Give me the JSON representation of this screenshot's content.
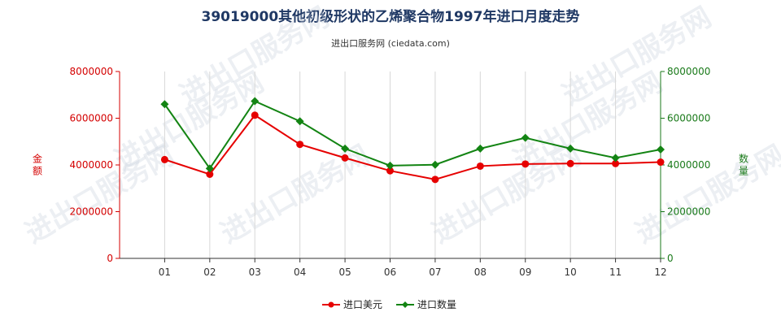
{
  "title": "39019000其他初级形状的乙烯聚合物1997年进口月度走势",
  "subtitle": "进出口服务网 (ciedata.com)",
  "watermark": "进出口服务网",
  "chart_data": {
    "type": "line",
    "categories": [
      "01",
      "02",
      "03",
      "04",
      "05",
      "06",
      "07",
      "08",
      "09",
      "10",
      "11",
      "12"
    ],
    "series": [
      {
        "name": "进口美元",
        "axis": "left",
        "color": "#e60000",
        "marker": "circle",
        "values": [
          4230000,
          3600000,
          6130000,
          4880000,
          4300000,
          3750000,
          3380000,
          3950000,
          4040000,
          4060000,
          4060000,
          4120000
        ]
      },
      {
        "name": "进口数量",
        "axis": "right",
        "color": "#138413",
        "marker": "diamond",
        "values": [
          6600000,
          3850000,
          6730000,
          5870000,
          4700000,
          3970000,
          4010000,
          4700000,
          5160000,
          4700000,
          4300000,
          4660000
        ]
      }
    ],
    "yleft": {
      "label": "金额",
      "ylim": [
        0,
        8000000
      ],
      "ticks": [
        "0",
        "2000000",
        "4000000",
        "6000000",
        "8000000"
      ],
      "color": "#d40000"
    },
    "yright": {
      "label": "数量",
      "ylim": [
        0,
        8000000
      ],
      "ticks": [
        "0",
        "2000000",
        "4000000",
        "6000000",
        "8000000"
      ],
      "color": "#1a7a1a"
    },
    "grid": "vertical",
    "legend": "bottom-center"
  }
}
